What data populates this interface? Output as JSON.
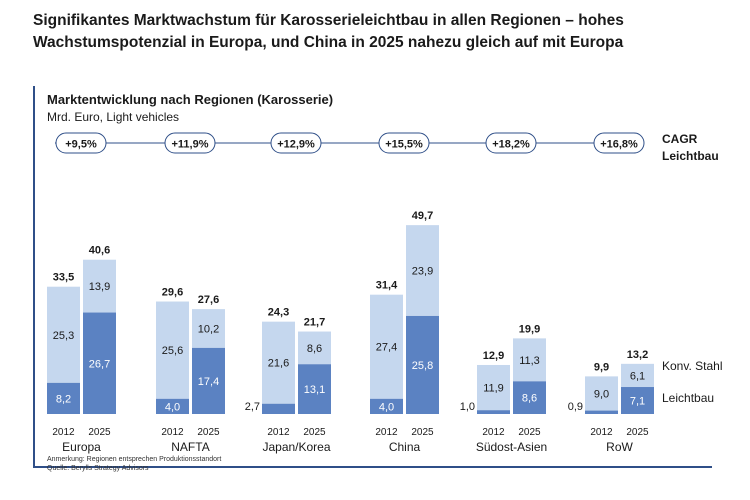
{
  "headline": "Signifikantes Marktwachstum für Karosserieleichtbau in allen Regionen – hohes Wachstumspotenzial in Europa, und China in 2025 nahezu gleich auf mit Europa",
  "cagr_title": [
    "CAGR",
    "Leichtbau"
  ],
  "note": "Anmerkung: Regionen entsprechen Produktionsstandort",
  "source": "Quelle: Berylls Strategy Advisors",
  "colors": {
    "leichtbau": "#5b82c2",
    "stahl": "#c5d7ee",
    "axis": "#2f4f88"
  },
  "chart_data": {
    "type": "bar",
    "stacked": true,
    "title": "Marktentwicklung nach Regionen (Karosserie)",
    "subtitle": "Mrd. Euro, Light vehicles",
    "years": [
      "2012",
      "2025"
    ],
    "categories": [
      "Europa",
      "NAFTA",
      "Japan/Korea",
      "China",
      "Südost-Asien",
      "RoW"
    ],
    "cagr": [
      "+9,5%",
      "+11,9%",
      "+12,9%",
      "+15,5%",
      "+18,2%",
      "+16,8%"
    ],
    "series": [
      {
        "name": "Leichtbau",
        "values": [
          [
            8.2,
            26.7
          ],
          [
            4.0,
            17.4
          ],
          [
            2.7,
            13.1
          ],
          [
            4.0,
            25.8
          ],
          [
            1.0,
            8.6
          ],
          [
            0.9,
            7.1
          ]
        ],
        "labels": [
          [
            "8,2",
            "26,7"
          ],
          [
            "4,0",
            "17,4"
          ],
          [
            "2,7",
            "13,1"
          ],
          [
            "4,0",
            "25,8"
          ],
          [
            "1,0",
            "8,6"
          ],
          [
            "0,9",
            "7,1"
          ]
        ]
      },
      {
        "name": "Konv. Stahl",
        "values": [
          [
            25.3,
            13.9
          ],
          [
            25.6,
            10.2
          ],
          [
            21.6,
            8.6
          ],
          [
            27.4,
            23.9
          ],
          [
            11.9,
            11.3
          ],
          [
            9.0,
            6.1
          ]
        ],
        "labels": [
          [
            "25,3",
            "13,9"
          ],
          [
            "25,6",
            "10,2"
          ],
          [
            "21,6",
            "8,6"
          ],
          [
            "27,4",
            "23,9"
          ],
          [
            "11,9",
            "11,3"
          ],
          [
            "9,0",
            "6,1"
          ]
        ]
      }
    ],
    "totals": [
      [
        33.5,
        40.6
      ],
      [
        29.6,
        27.6
      ],
      [
        24.3,
        21.7
      ],
      [
        31.4,
        49.7
      ],
      [
        12.9,
        19.9
      ],
      [
        9.9,
        13.2
      ]
    ],
    "total_labels": [
      [
        "33,5",
        "40,6"
      ],
      [
        "29,6",
        "27,6"
      ],
      [
        "24,3",
        "21,7"
      ],
      [
        "31,4",
        "49,7"
      ],
      [
        "12,9",
        "19,9"
      ],
      [
        "9,9",
        "13,2"
      ]
    ],
    "ylim": [
      0,
      50
    ],
    "legend": [
      "Konv. Stahl",
      "Leichtbau"
    ]
  }
}
